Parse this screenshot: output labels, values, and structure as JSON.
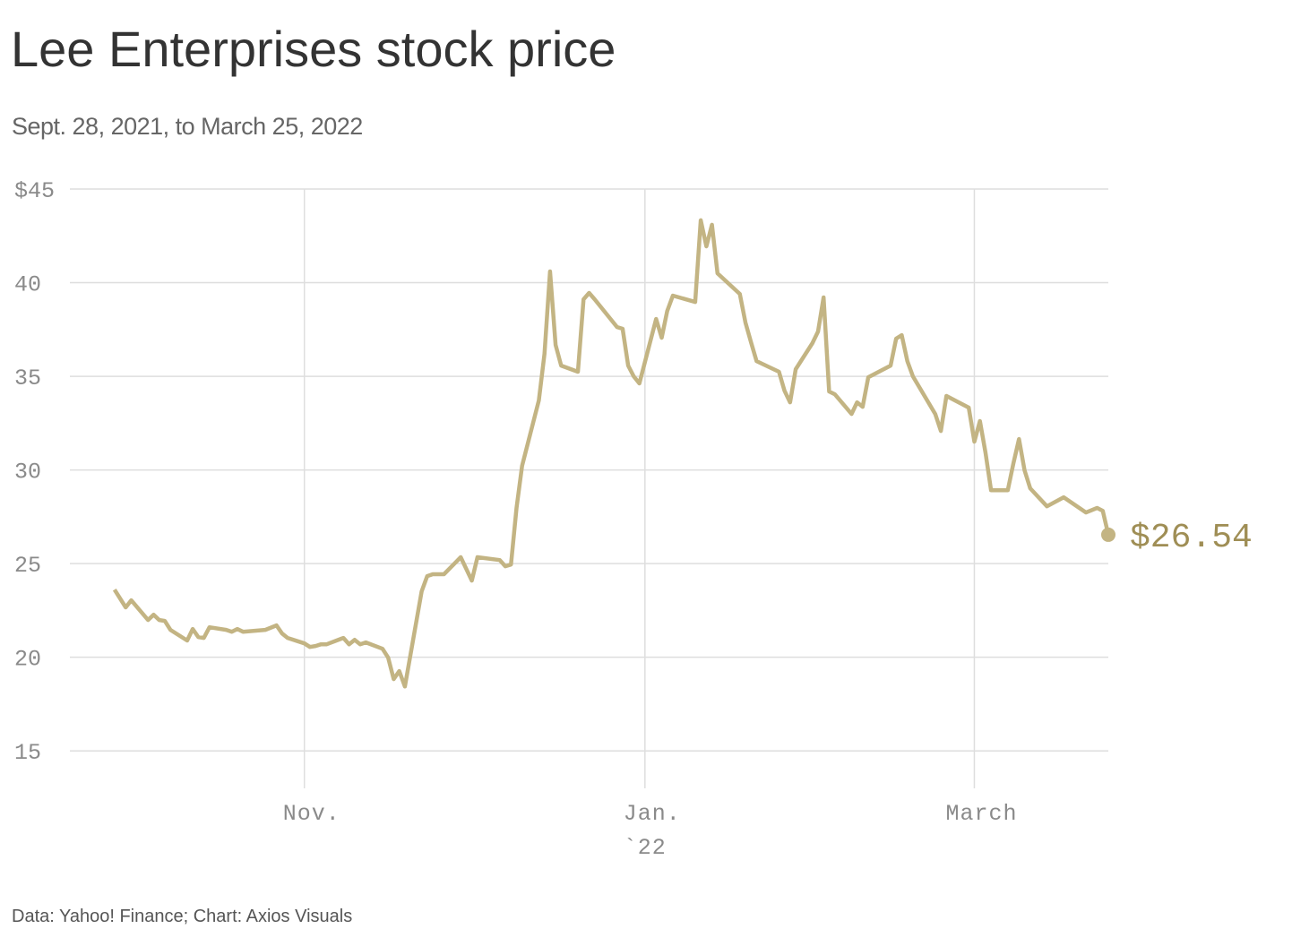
{
  "chart_data": {
    "type": "line",
    "title": "Lee Enterprises stock price",
    "subtitle": "Sept. 28, 2021, to March 25, 2022",
    "source": "Data: Yahoo! Finance; Chart: Axios Visuals",
    "color": "#c3b483",
    "label_color": "#9f8e55",
    "grid": true,
    "x": [
      "2021-09-28",
      "2021-09-30",
      "2021-10-01",
      "2021-10-04",
      "2021-10-05",
      "2021-10-06",
      "2021-10-07",
      "2021-10-08",
      "2021-10-11",
      "2021-10-12",
      "2021-10-13",
      "2021-10-14",
      "2021-10-15",
      "2021-10-18",
      "2021-10-19",
      "2021-10-20",
      "2021-10-21",
      "2021-10-25",
      "2021-10-27",
      "2021-10-28",
      "2021-10-29",
      "2021-11-01",
      "2021-11-02",
      "2021-11-03",
      "2021-11-04",
      "2021-11-05",
      "2021-11-08",
      "2021-11-09",
      "2021-11-10",
      "2021-11-11",
      "2021-11-12",
      "2021-11-15",
      "2021-11-16",
      "2021-11-17",
      "2021-11-18",
      "2021-11-19",
      "2021-11-22",
      "2021-11-23",
      "2021-11-24",
      "2021-11-26",
      "2021-11-29",
      "2021-12-01",
      "2021-12-02",
      "2021-12-06",
      "2021-12-07",
      "2021-12-08",
      "2021-12-09",
      "2021-12-10",
      "2021-12-13",
      "2021-12-14",
      "2021-12-15",
      "2021-12-16",
      "2021-12-17",
      "2021-12-20",
      "2021-12-21",
      "2021-12-22",
      "2021-12-23",
      "2021-12-27",
      "2021-12-28",
      "2021-12-29",
      "2021-12-30",
      "2021-12-31",
      "2022-01-03",
      "2022-01-04",
      "2022-01-05",
      "2022-01-06",
      "2022-01-10",
      "2022-01-11",
      "2022-01-12",
      "2022-01-13",
      "2022-01-14",
      "2022-01-18",
      "2022-01-19",
      "2022-01-20",
      "2022-01-21",
      "2022-01-25",
      "2022-01-26",
      "2022-01-27",
      "2022-01-28",
      "2022-01-31",
      "2022-02-01",
      "2022-02-02",
      "2022-02-03",
      "2022-02-04",
      "2022-02-07",
      "2022-02-08",
      "2022-02-09",
      "2022-02-10",
      "2022-02-14",
      "2022-02-15",
      "2022-02-16",
      "2022-02-17",
      "2022-02-18",
      "2022-02-22",
      "2022-02-23",
      "2022-02-24",
      "2022-02-28",
      "2022-03-01",
      "2022-03-02",
      "2022-03-03",
      "2022-03-04",
      "2022-03-07",
      "2022-03-08",
      "2022-03-09",
      "2022-03-10",
      "2022-03-11",
      "2022-03-14",
      "2022-03-17",
      "2022-03-21",
      "2022-03-23",
      "2022-03-24",
      "2022-03-25"
    ],
    "values": [
      23.61,
      22.66,
      23.04,
      21.99,
      22.27,
      21.99,
      21.94,
      21.46,
      20.89,
      21.51,
      21.08,
      21.03,
      21.6,
      21.46,
      21.36,
      21.51,
      21.36,
      21.46,
      21.7,
      21.27,
      21.03,
      20.74,
      20.55,
      20.6,
      20.69,
      20.69,
      21.03,
      20.69,
      20.93,
      20.69,
      20.79,
      20.45,
      19.98,
      18.83,
      19.26,
      18.44,
      23.52,
      24.33,
      24.43,
      24.43,
      25.34,
      24.09,
      25.34,
      25.19,
      24.86,
      24.95,
      27.97,
      30.22,
      33.71,
      36.2,
      40.6,
      36.67,
      35.57,
      35.24,
      39.11,
      39.45,
      39.11,
      37.63,
      37.54,
      35.57,
      35.0,
      34.62,
      38.06,
      37.06,
      38.49,
      39.31,
      38.97,
      43.33,
      41.94,
      43.09,
      40.5,
      39.4,
      37.87,
      36.82,
      35.81,
      35.24,
      34.23,
      33.61,
      35.38,
      36.77,
      37.39,
      39.21,
      34.19,
      34.04,
      32.99,
      33.61,
      33.37,
      34.95,
      35.57,
      37.01,
      37.2,
      35.81,
      35.0,
      32.99,
      32.08,
      33.95,
      33.33,
      31.51,
      32.61,
      30.93,
      28.92,
      28.92,
      30.36,
      31.65,
      29.98,
      29.02,
      28.06,
      28.54,
      27.73,
      27.97,
      27.82,
      26.54
    ],
    "value_labels": [
      null,
      null,
      null,
      null,
      null,
      null,
      null,
      null,
      null,
      null,
      null,
      null,
      null,
      null,
      null,
      null,
      null,
      null,
      null,
      null,
      null,
      null,
      null,
      null,
      null,
      null,
      null,
      null,
      null,
      null,
      null,
      null,
      null,
      null,
      null,
      null,
      null,
      null,
      null,
      null,
      null,
      null,
      null,
      null,
      null,
      null,
      null,
      null,
      null,
      null,
      null,
      null,
      null,
      null,
      null,
      null,
      null,
      null,
      null,
      null,
      null,
      null,
      null,
      null,
      null,
      null,
      null,
      null,
      null,
      null,
      null,
      null,
      null,
      null,
      null,
      null,
      null,
      null,
      null,
      null,
      null,
      null,
      null,
      null,
      null,
      null,
      null,
      null,
      null,
      null,
      null,
      null,
      null,
      null,
      null,
      null,
      null,
      null,
      null,
      null,
      null,
      null,
      null,
      null,
      null,
      null,
      null,
      null,
      null,
      null,
      null,
      "$26.54"
    ],
    "xlim": [
      "2021-09-20",
      "2022-03-25"
    ],
    "xticks": [
      {
        "value": "2021-11-01",
        "label": "Nov."
      },
      {
        "value": "2022-01-01",
        "label": "Jan.",
        "sublabel": "`22"
      },
      {
        "value": "2022-03-01",
        "label": "March"
      }
    ],
    "ylim": [
      13,
      45
    ],
    "yticks": [
      {
        "value": 45,
        "label": "$45"
      },
      40,
      35,
      30,
      25,
      20,
      15
    ]
  }
}
